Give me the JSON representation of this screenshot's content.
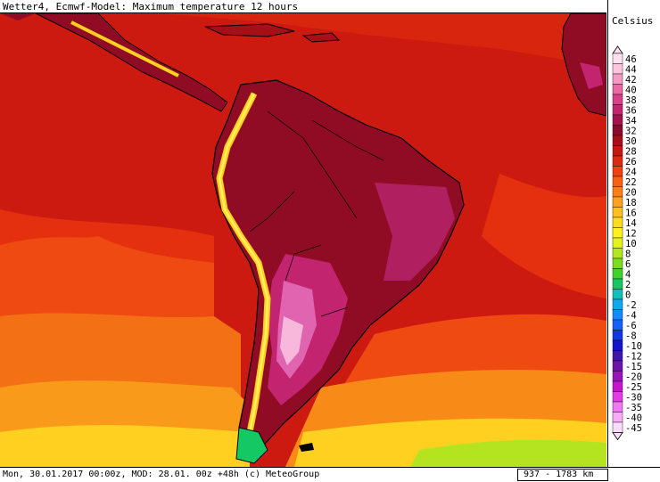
{
  "header": {
    "title": "Wetter4, Ecmwf-Model: Maximum temperature 12 hours"
  },
  "legend": {
    "unit": "Celsius",
    "levels": [
      {
        "label": "46",
        "color": "#ffe0f0"
      },
      {
        "label": "44",
        "color": "#ffc4de"
      },
      {
        "label": "42",
        "color": "#f59ac4"
      },
      {
        "label": "40",
        "color": "#ea6aa4"
      },
      {
        "label": "38",
        "color": "#d84089"
      },
      {
        "label": "36",
        "color": "#c22470"
      },
      {
        "label": "34",
        "color": "#a3124e"
      },
      {
        "label": "32",
        "color": "#8a0a2c"
      },
      {
        "label": "30",
        "color": "#a50f18"
      },
      {
        "label": "28",
        "color": "#c21812"
      },
      {
        "label": "26",
        "color": "#dc2a10"
      },
      {
        "label": "24",
        "color": "#ee4010"
      },
      {
        "label": "22",
        "color": "#f86014"
      },
      {
        "label": "20",
        "color": "#fc8018"
      },
      {
        "label": "18",
        "color": "#ffa020"
      },
      {
        "label": "16",
        "color": "#ffc020"
      },
      {
        "label": "14",
        "color": "#ffdc20"
      },
      {
        "label": "12",
        "color": "#fff020"
      },
      {
        "label": "10",
        "color": "#e4f020"
      },
      {
        "label": "8",
        "color": "#b4e620"
      },
      {
        "label": "6",
        "color": "#7cdc20"
      },
      {
        "label": "4",
        "color": "#3cd42a"
      },
      {
        "label": "2",
        "color": "#14c864"
      },
      {
        "label": "0",
        "color": "#10c0b8"
      },
      {
        "label": "-2",
        "color": "#10a8e8"
      },
      {
        "label": "-4",
        "color": "#1488ff"
      },
      {
        "label": "-6",
        "color": "#1460f8"
      },
      {
        "label": "-8",
        "color": "#1438e0"
      },
      {
        "label": "-10",
        "color": "#1414c8"
      },
      {
        "label": "-12",
        "color": "#4014b0"
      },
      {
        "label": "-15",
        "color": "#6c14a8"
      },
      {
        "label": "-20",
        "color": "#9814b8"
      },
      {
        "label": "-25",
        "color": "#c414d0"
      },
      {
        "label": "-30",
        "color": "#e43ce4"
      },
      {
        "label": "-35",
        "color": "#f078f0"
      },
      {
        "label": "-40",
        "color": "#f8acf8"
      },
      {
        "label": "-45",
        "color": "#fcdcfc"
      }
    ]
  },
  "footer": {
    "timestamp": "Mon, 30.01.2017 00:00z, MOD: 28.01. 00z +48h (c) MeteoGroup",
    "scale": "937 - 1783 km"
  },
  "map_colors": {
    "ocean_warm": "#cc1a10",
    "ocean_mid": "#e4300e",
    "ocean_cool": "#f06414",
    "ocean_orange": "#fa9018",
    "ocean_yellow": "#ffd020",
    "ocean_green": "#b4e420",
    "land_hot": "#900c24",
    "land_very_hot": "#a81444",
    "land_extreme": "#c22470",
    "land_magenta": "#e064b0",
    "land_pink": "#f8b8dc",
    "andes_cool": "#ffe020",
    "coast_line": "#000000"
  }
}
